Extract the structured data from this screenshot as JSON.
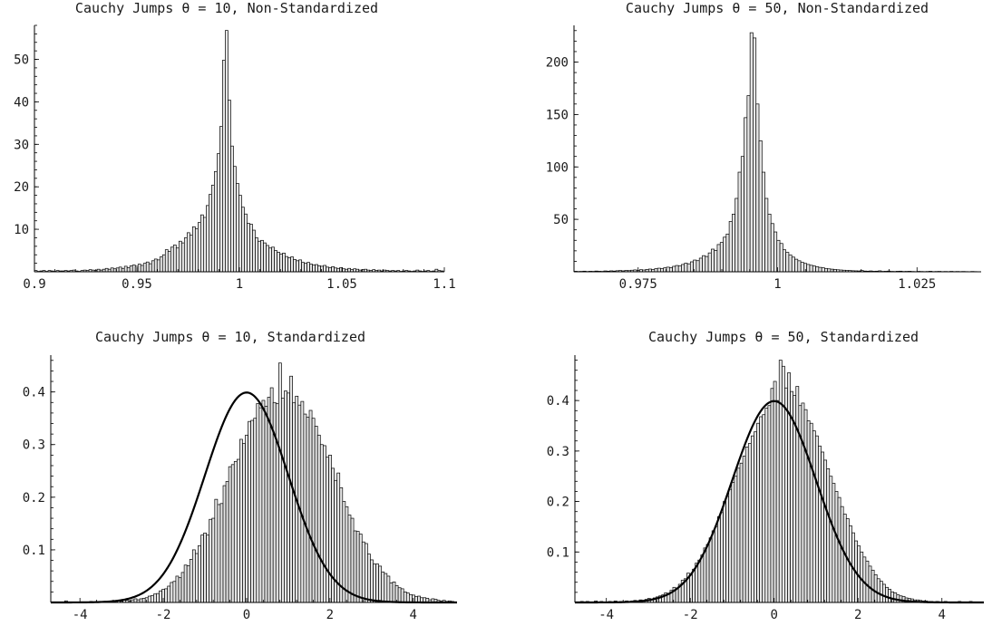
{
  "figure": {
    "theme": {
      "bar_fill": "#e6e6e6",
      "bar_stroke": "#000000",
      "curve_color": "#000000"
    }
  },
  "chart_data": [
    {
      "type": "bar",
      "title": "Cauchy Jumps θ = 10, Non-Standardized",
      "xlabel": "",
      "ylabel": "",
      "xlim": [
        0.9,
        1.1
      ],
      "ylim": [
        0,
        58
      ],
      "xticks": [
        0.9,
        0.95,
        1,
        1.05,
        1.1
      ],
      "xtick_labels": [
        "0.9",
        "0.95",
        "1",
        "1.05",
        "1.1"
      ],
      "yticks": [
        10,
        20,
        30,
        40,
        50
      ],
      "ytick_labels": [
        "10",
        "20",
        "30",
        "40",
        "50"
      ],
      "grid": false,
      "bin_start": 0.9,
      "bin_width": 0.00133,
      "values": [
        0.3,
        0.1,
        0.2,
        0.3,
        0.1,
        0.3,
        0.2,
        0.1,
        0.3,
        0.2,
        0.2,
        0.3,
        0.2,
        0.3,
        0.4,
        0.2,
        0.1,
        0.3,
        0.4,
        0.3,
        0.5,
        0.4,
        0.3,
        0.6,
        0.4,
        0.6,
        0.8,
        0.6,
        0.9,
        0.7,
        0.9,
        1.1,
        0.8,
        1.3,
        1.0,
        1.4,
        1.6,
        1.3,
        1.8,
        1.5,
        2.0,
        2.3,
        1.9,
        2.6,
        3.0,
        2.8,
        3.5,
        4.0,
        5.2,
        4.8,
        5.8,
        6.3,
        5.6,
        7.2,
        6.8,
        8.0,
        9.2,
        8.6,
        10.6,
        10.1,
        11.6,
        13.4,
        12.8,
        15.6,
        18.2,
        20.4,
        23.6,
        27.8,
        34.2,
        49.8,
        56.8,
        40.4,
        29.6,
        24.8,
        20.8,
        18.0,
        15.2,
        13.6,
        11.4,
        11.2,
        9.8,
        8.0,
        7.2,
        7.4,
        6.8,
        6.2,
        5.6,
        5.8,
        5.0,
        4.6,
        4.2,
        4.4,
        3.6,
        3.3,
        3.5,
        2.9,
        2.6,
        2.8,
        2.2,
        2.0,
        2.2,
        1.8,
        1.6,
        1.7,
        1.4,
        1.3,
        1.5,
        1.1,
        1.0,
        1.2,
        0.9,
        0.8,
        1.0,
        0.7,
        0.6,
        0.8,
        0.5,
        0.7,
        0.6,
        0.4,
        0.5,
        0.6,
        0.4,
        0.3,
        0.5,
        0.3,
        0.4,
        0.2,
        0.4,
        0.3,
        0.2,
        0.3,
        0.2,
        0.3,
        0.1,
        0.2,
        0.3,
        0.2,
        0.1,
        0.2,
        0.4,
        0.2,
        0.1,
        0.2,
        0.3,
        0.1,
        0.2,
        0.6,
        0.3,
        0.2
      ]
    },
    {
      "type": "bar",
      "title": "Cauchy Jumps θ = 50, Non-Standardized",
      "xlabel": "",
      "ylabel": "",
      "xlim": [
        0.9635,
        1.0365
      ],
      "ylim": [
        0,
        235
      ],
      "xticks": [
        0.975,
        1,
        1.025
      ],
      "xtick_labels": [
        "0.975",
        "1",
        "1.025"
      ],
      "yticks": [
        50,
        100,
        150,
        200
      ],
      "ytick_labels": [
        "50",
        "100",
        "150",
        "200"
      ],
      "grid": false,
      "bin_start": 0.9635,
      "bin_width": 0.000535,
      "values": [
        0.5,
        0.3,
        0.4,
        0.6,
        0.3,
        0.5,
        0.4,
        0.7,
        0.5,
        0.4,
        0.8,
        0.6,
        0.9,
        0.7,
        1.0,
        1.2,
        0.9,
        1.3,
        1.1,
        1.5,
        1.8,
        1.4,
        2.0,
        1.7,
        2.3,
        2.6,
        2.2,
        3.0,
        3.4,
        3.0,
        3.8,
        4.4,
        4.0,
        5.2,
        6.0,
        5.5,
        7.0,
        8.2,
        7.6,
        9.5,
        11.2,
        10.6,
        13.0,
        15.4,
        14.6,
        18.0,
        21.6,
        20.4,
        26.0,
        28.0,
        33.0,
        36.0,
        48.0,
        55.0,
        70.0,
        95.0,
        110.0,
        147.0,
        168.0,
        228.0,
        223.0,
        160.0,
        125.0,
        95.0,
        70.0,
        55.0,
        46.0,
        38.0,
        30.0,
        27.0,
        21.0,
        18.5,
        16.0,
        14.0,
        12.0,
        10.5,
        9.0,
        8.0,
        7.0,
        6.2,
        5.5,
        4.8,
        4.2,
        3.8,
        3.2,
        2.8,
        2.5,
        2.2,
        1.9,
        1.7,
        1.5,
        1.3,
        1.2,
        1.0,
        0.9,
        0.8,
        1.2,
        0.7,
        0.6,
        0.8,
        0.5,
        0.6,
        0.9,
        0.4,
        0.5,
        0.7,
        0.4,
        0.3,
        0.5,
        0.6,
        0.3,
        0.4,
        0.5,
        0.3,
        0.2,
        0.4,
        0.3,
        0.2,
        0.3,
        0.5,
        0.2,
        0.3,
        0.4,
        0.2,
        0.3,
        0.2,
        0.4,
        0.2,
        0.3,
        0.2,
        0.3,
        0.2,
        0.1,
        0.3,
        0.2
      ]
    },
    {
      "type": "bar",
      "title": "Cauchy Jumps θ = 10, Standardized",
      "xlabel": "",
      "ylabel": "",
      "xlim": [
        -4.7,
        5.05
      ],
      "ylim": [
        0,
        0.47
      ],
      "xticks": [
        -4,
        -2,
        0,
        2,
        4
      ],
      "xtick_labels": [
        "-4",
        "-2",
        "0",
        "2",
        "4"
      ],
      "yticks": [
        0.1,
        0.2,
        0.3,
        0.4
      ],
      "ytick_labels": [
        "0.1",
        "0.2",
        "0.3",
        "0.4"
      ],
      "grid": false,
      "bin_start": -4.7,
      "bin_width": 0.0667,
      "overlay": "standard normal density",
      "values": [
        0,
        0,
        0,
        0,
        0,
        0.003,
        0,
        0,
        0,
        0,
        0,
        0,
        0,
        0,
        0.002,
        0,
        0.002,
        0,
        0.001,
        0.002,
        0.001,
        0.002,
        0.001,
        0.002,
        0.003,
        0.002,
        0.004,
        0.004,
        0.003,
        0.005,
        0.007,
        0.005,
        0.007,
        0.008,
        0.009,
        0.012,
        0.013,
        0.016,
        0.017,
        0.022,
        0.025,
        0.026,
        0.031,
        0.038,
        0.04,
        0.05,
        0.047,
        0.057,
        0.071,
        0.07,
        0.082,
        0.1,
        0.093,
        0.108,
        0.128,
        0.132,
        0.128,
        0.158,
        0.16,
        0.196,
        0.186,
        0.188,
        0.222,
        0.23,
        0.258,
        0.262,
        0.268,
        0.272,
        0.31,
        0.302,
        0.318,
        0.344,
        0.346,
        0.35,
        0.378,
        0.37,
        0.384,
        0.373,
        0.39,
        0.408,
        0.38,
        0.378,
        0.455,
        0.388,
        0.402,
        0.398,
        0.43,
        0.38,
        0.392,
        0.375,
        0.382,
        0.358,
        0.352,
        0.365,
        0.35,
        0.335,
        0.318,
        0.3,
        0.298,
        0.276,
        0.28,
        0.255,
        0.232,
        0.246,
        0.218,
        0.192,
        0.182,
        0.166,
        0.16,
        0.136,
        0.135,
        0.13,
        0.115,
        0.112,
        0.092,
        0.081,
        0.073,
        0.073,
        0.069,
        0.058,
        0.055,
        0.05,
        0.037,
        0.039,
        0.032,
        0.028,
        0.026,
        0.02,
        0.018,
        0.015,
        0.014,
        0.011,
        0.012,
        0.009,
        0.009,
        0.008,
        0.005,
        0.007,
        0.006,
        0.004,
        0.003,
        0.004,
        0.002,
        0.003,
        0.002,
        0.001,
        0.001,
        0.002,
        0.001,
        0.001
      ]
    },
    {
      "type": "bar",
      "title": "Cauchy Jumps θ = 50, Standardized",
      "xlabel": "",
      "ylabel": "",
      "xlim": [
        -4.75,
        5.0
      ],
      "ylim": [
        0,
        0.49
      ],
      "xticks": [
        -4,
        -2,
        0,
        2,
        4
      ],
      "xtick_labels": [
        "-4",
        "-2",
        "0",
        "2",
        "4"
      ],
      "yticks": [
        0.1,
        0.2,
        0.3,
        0.4
      ],
      "ytick_labels": [
        "0.1",
        "0.2",
        "0.3",
        "0.4"
      ],
      "grid": false,
      "bin_start": -4.75,
      "bin_width": 0.0667,
      "overlay": "standard normal density",
      "values": [
        0,
        0.001,
        0.002,
        0,
        0.002,
        0.001,
        0,
        0.003,
        0.001,
        0.002,
        0,
        0.001,
        0.002,
        0,
        0.003,
        0.001,
        0.002,
        0.001,
        0.003,
        0.002,
        0.003,
        0.004,
        0.003,
        0.005,
        0.004,
        0.006,
        0.008,
        0.006,
        0.009,
        0.011,
        0.013,
        0.015,
        0.019,
        0.018,
        0.024,
        0.03,
        0.028,
        0.036,
        0.044,
        0.047,
        0.058,
        0.054,
        0.066,
        0.078,
        0.084,
        0.094,
        0.108,
        0.115,
        0.128,
        0.142,
        0.15,
        0.17,
        0.178,
        0.2,
        0.21,
        0.224,
        0.238,
        0.25,
        0.266,
        0.276,
        0.29,
        0.308,
        0.315,
        0.33,
        0.338,
        0.355,
        0.368,
        0.372,
        0.385,
        0.39,
        0.424,
        0.438,
        0.4,
        0.48,
        0.468,
        0.425,
        0.455,
        0.418,
        0.41,
        0.428,
        0.39,
        0.395,
        0.382,
        0.36,
        0.355,
        0.34,
        0.33,
        0.31,
        0.298,
        0.282,
        0.265,
        0.25,
        0.236,
        0.22,
        0.208,
        0.19,
        0.175,
        0.166,
        0.152,
        0.138,
        0.122,
        0.112,
        0.1,
        0.09,
        0.082,
        0.072,
        0.064,
        0.055,
        0.047,
        0.042,
        0.036,
        0.03,
        0.026,
        0.021,
        0.019,
        0.015,
        0.013,
        0.012,
        0.009,
        0.008,
        0.007,
        0.005,
        0.005,
        0.004,
        0.003,
        0.003,
        0.002,
        0.002,
        0.001,
        0.002,
        0.001,
        0.001,
        0.002,
        0.001,
        0.001,
        0.001,
        0.001,
        0.002,
        0.001,
        0.001,
        0.001,
        0.002,
        0,
        0.001,
        0.001,
        0.001
      ]
    }
  ]
}
